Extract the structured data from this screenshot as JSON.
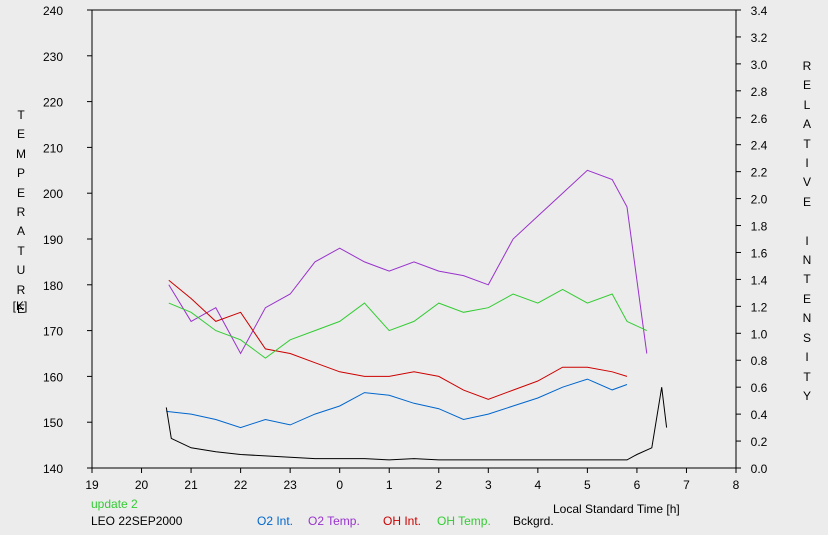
{
  "chart_data": {
    "type": "line",
    "title": "",
    "xlabel": "Local Standard Time [h]",
    "ylabel_left": "TEMPERATURE",
    "ylabel_left_unit": "[K]",
    "ylabel_right": "RELATIVE INTENSITY",
    "xlim": [
      19,
      32
    ],
    "ylim_left": [
      140,
      240
    ],
    "ylim_right": [
      0.0,
      3.4
    ],
    "x_tick_labels": [
      "19",
      "20",
      "21",
      "22",
      "23",
      "0",
      "1",
      "2",
      "3",
      "4",
      "5",
      "6",
      "7",
      "8"
    ],
    "y_left_tick_labels": [
      "140",
      "150",
      "160",
      "170",
      "180",
      "190",
      "200",
      "210",
      "220",
      "230",
      "240"
    ],
    "y_right_tick_labels": [
      "0.0",
      "0.2",
      "0.4",
      "0.6",
      "0.8",
      "1.0",
      "1.2",
      "1.4",
      "1.6",
      "1.8",
      "2.0",
      "2.2",
      "2.4",
      "2.6",
      "2.8",
      "3.0",
      "3.2",
      "3.4"
    ],
    "grid": false,
    "legend_position": "bottom",
    "series": [
      {
        "name": "O2 Int.",
        "axis": "right",
        "color": "#0066cc",
        "x": [
          20.5,
          21.0,
          21.5,
          22.0,
          22.5,
          23.0,
          23.5,
          24.0,
          24.5,
          25.0,
          25.5,
          26.0,
          26.5,
          27.0,
          27.5,
          28.0,
          28.5,
          29.0,
          29.5,
          29.8
        ],
        "y": [
          0.42,
          0.4,
          0.36,
          0.3,
          0.36,
          0.32,
          0.4,
          0.46,
          0.56,
          0.54,
          0.48,
          0.44,
          0.36,
          0.4,
          0.46,
          0.52,
          0.6,
          0.66,
          0.58,
          0.62
        ]
      },
      {
        "name": "O2 Temp.",
        "axis": "left",
        "color": "#9933cc",
        "x": [
          20.55,
          21.0,
          21.5,
          22.0,
          22.5,
          23.0,
          23.5,
          24.0,
          24.5,
          25.0,
          25.5,
          26.0,
          26.5,
          27.0,
          27.5,
          28.0,
          28.5,
          29.0,
          29.5,
          29.8,
          30.2
        ],
        "y": [
          180,
          172,
          175,
          165,
          175,
          178,
          185,
          188,
          185,
          183,
          185,
          183,
          182,
          180,
          190,
          195,
          200,
          205,
          203,
          197,
          165
        ]
      },
      {
        "name": "OH Int.",
        "axis": "left",
        "color": "#cc0000",
        "x": [
          20.55,
          21.0,
          21.5,
          22.0,
          22.5,
          23.0,
          23.5,
          24.0,
          24.5,
          25.0,
          25.5,
          26.0,
          26.5,
          27.0,
          27.5,
          28.0,
          28.5,
          29.0,
          29.5,
          29.8
        ],
        "y": [
          181,
          177,
          172,
          174,
          166,
          165,
          163,
          161,
          160,
          160,
          161,
          160,
          157,
          155,
          157,
          159,
          162,
          162,
          161,
          160
        ]
      },
      {
        "name": "OH Temp.",
        "axis": "left",
        "color": "#33cc33",
        "x": [
          20.55,
          21.0,
          21.5,
          22.0,
          22.5,
          23.0,
          23.5,
          24.0,
          24.5,
          25.0,
          25.5,
          26.0,
          26.5,
          27.0,
          27.5,
          28.0,
          28.5,
          29.0,
          29.5,
          29.8,
          30.2
        ],
        "y": [
          176,
          174,
          170,
          168,
          164,
          168,
          170,
          172,
          176,
          170,
          172,
          176,
          174,
          175,
          178,
          176,
          179,
          176,
          178,
          172,
          170
        ]
      },
      {
        "name": "Bckgrd.",
        "axis": "right",
        "color": "#000000",
        "x": [
          20.5,
          20.6,
          21.0,
          21.5,
          22.0,
          22.5,
          23.0,
          23.5,
          24.0,
          24.5,
          25.0,
          25.5,
          26.0,
          26.5,
          27.0,
          27.5,
          28.0,
          28.5,
          29.0,
          29.5,
          29.8,
          30.0,
          30.3,
          30.5,
          30.6
        ],
        "y": [
          0.45,
          0.22,
          0.15,
          0.12,
          0.1,
          0.09,
          0.08,
          0.07,
          0.07,
          0.07,
          0.06,
          0.07,
          0.06,
          0.06,
          0.06,
          0.06,
          0.06,
          0.06,
          0.06,
          0.06,
          0.06,
          0.1,
          0.15,
          0.6,
          0.3
        ]
      }
    ]
  },
  "legend": {
    "update_label": "update 2",
    "update_color": "#33cc33",
    "station_label": "LEO 22SEP2000",
    "items": [
      {
        "label": "O2 Int.",
        "color": "#0066cc"
      },
      {
        "label": "O2 Temp.",
        "color": "#9933cc"
      },
      {
        "label": "OH Int.",
        "color": "#cc0000"
      },
      {
        "label": "OH Temp.",
        "color": "#33cc33"
      },
      {
        "label": "Bckgrd.",
        "color": "#000000"
      }
    ]
  }
}
